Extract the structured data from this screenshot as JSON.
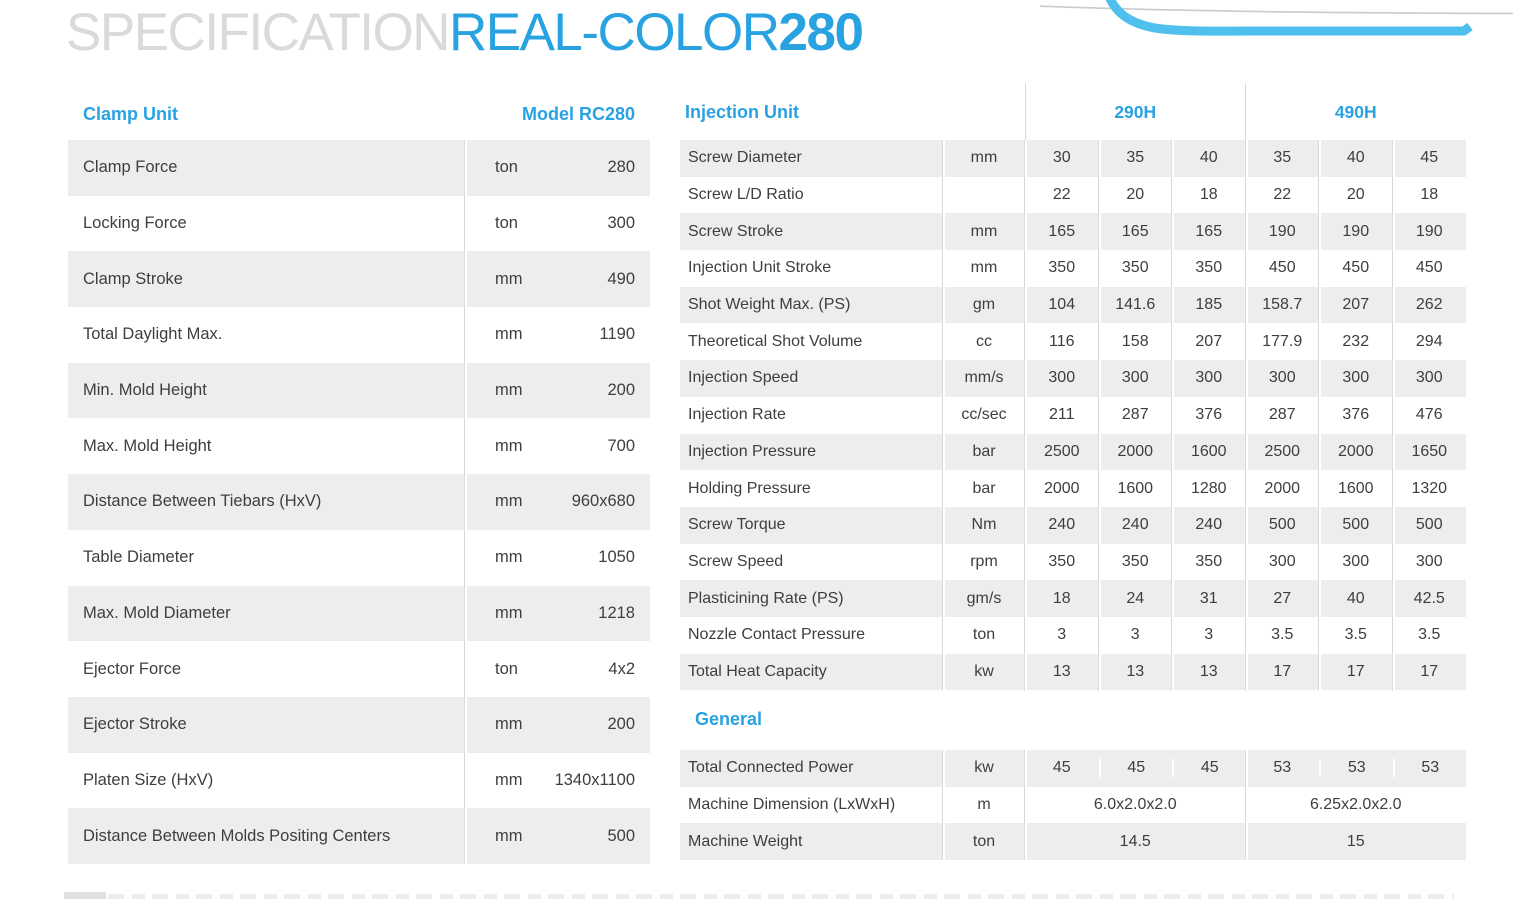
{
  "title": {
    "part1": "SPECIFICATION",
    "part2": "REAL-COLOR",
    "part3": "280"
  },
  "colors": {
    "accent_blue": "#29a2e2",
    "swoosh_blue": "#4fc0ed",
    "title_gray": "#d8dadc",
    "row_gray": "#ededee",
    "text_dark": "#3e3e40",
    "divider_gray": "#d9dadb"
  },
  "clamp_table": {
    "title": "Clamp Unit",
    "model_header": "Model RC280",
    "rows": [
      {
        "label": "Clamp Force",
        "unit": "ton",
        "value": "280"
      },
      {
        "label": "Locking Force",
        "unit": "ton",
        "value": "300"
      },
      {
        "label": "Clamp Stroke",
        "unit": "mm",
        "value": "490"
      },
      {
        "label": "Total Daylight Max.",
        "unit": "mm",
        "value": "1190"
      },
      {
        "label": "Min. Mold Height",
        "unit": "mm",
        "value": "200"
      },
      {
        "label": "Max. Mold Height",
        "unit": "mm",
        "value": "700"
      },
      {
        "label": "Distance Between Tiebars (HxV)",
        "unit": "mm",
        "value": "960x680"
      },
      {
        "label": "Table Diameter",
        "unit": "mm",
        "value": "1050"
      },
      {
        "label": "Max. Mold Diameter",
        "unit": "mm",
        "value": "1218"
      },
      {
        "label": "Ejector Force",
        "unit": "ton",
        "value": "4x2"
      },
      {
        "label": "Ejector Stroke",
        "unit": "mm",
        "value": "200"
      },
      {
        "label": "Platen Size (HxV)",
        "unit": "mm",
        "value": "1340x1100"
      },
      {
        "label": "Distance Between Molds Positing Centers",
        "unit": "mm",
        "value": "500"
      }
    ]
  },
  "injection_table": {
    "title": "Injection Unit",
    "groups": [
      "290H",
      "490H"
    ],
    "rows": [
      {
        "label": "Screw Diameter",
        "unit": "mm",
        "values": [
          "30",
          "35",
          "40",
          "35",
          "40",
          "45"
        ]
      },
      {
        "label": "Screw L/D Ratio",
        "unit": "",
        "values": [
          "22",
          "20",
          "18",
          "22",
          "20",
          "18"
        ]
      },
      {
        "label": "Screw Stroke",
        "unit": "mm",
        "values": [
          "165",
          "165",
          "165",
          "190",
          "190",
          "190"
        ]
      },
      {
        "label": "Injection Unit Stroke",
        "unit": "mm",
        "values": [
          "350",
          "350",
          "350",
          "450",
          "450",
          "450"
        ]
      },
      {
        "label": "Shot Weight Max. (PS)",
        "unit": "gm",
        "values": [
          "104",
          "141.6",
          "185",
          "158.7",
          "207",
          "262"
        ]
      },
      {
        "label": "Theoretical Shot Volume",
        "unit": "cc",
        "values": [
          "116",
          "158",
          "207",
          "177.9",
          "232",
          "294"
        ]
      },
      {
        "label": "Injection Speed",
        "unit": "mm/s",
        "values": [
          "300",
          "300",
          "300",
          "300",
          "300",
          "300"
        ]
      },
      {
        "label": "Injection Rate",
        "unit": "cc/sec",
        "values": [
          "211",
          "287",
          "376",
          "287",
          "376",
          "476"
        ]
      },
      {
        "label": "Injection Pressure",
        "unit": "bar",
        "values": [
          "2500",
          "2000",
          "1600",
          "2500",
          "2000",
          "1650"
        ]
      },
      {
        "label": "Holding Pressure",
        "unit": "bar",
        "values": [
          "2000",
          "1600",
          "1280",
          "2000",
          "1600",
          "1320"
        ]
      },
      {
        "label": "Screw Torque",
        "unit": "Nm",
        "values": [
          "240",
          "240",
          "240",
          "500",
          "500",
          "500"
        ]
      },
      {
        "label": "Screw Speed",
        "unit": "rpm",
        "values": [
          "350",
          "350",
          "350",
          "300",
          "300",
          "300"
        ]
      },
      {
        "label": "Plasticining Rate (PS)",
        "unit": "gm/s",
        "values": [
          "18",
          "24",
          "31",
          "27",
          "40",
          "42.5"
        ]
      },
      {
        "label": "Nozzle Contact Pressure",
        "unit": "ton",
        "values": [
          "3",
          "3",
          "3",
          "3.5",
          "3.5",
          "3.5"
        ]
      },
      {
        "label": "Total Heat Capacity",
        "unit": "kw",
        "values": [
          "13",
          "13",
          "13",
          "17",
          "17",
          "17"
        ]
      }
    ]
  },
  "general_table": {
    "title": "General",
    "rows": [
      {
        "label": "Total Connected Power",
        "unit": "kw",
        "span": false,
        "values": [
          "45",
          "45",
          "45",
          "53",
          "53",
          "53"
        ]
      },
      {
        "label": "Machine Dimension (LxWxH)",
        "unit": "m",
        "span": true,
        "values": [
          "6.0x2.0x2.0",
          "6.25x2.0x2.0"
        ]
      },
      {
        "label": "Machine Weight",
        "unit": "ton",
        "span": true,
        "values": [
          "14.5",
          "15"
        ]
      }
    ]
  }
}
